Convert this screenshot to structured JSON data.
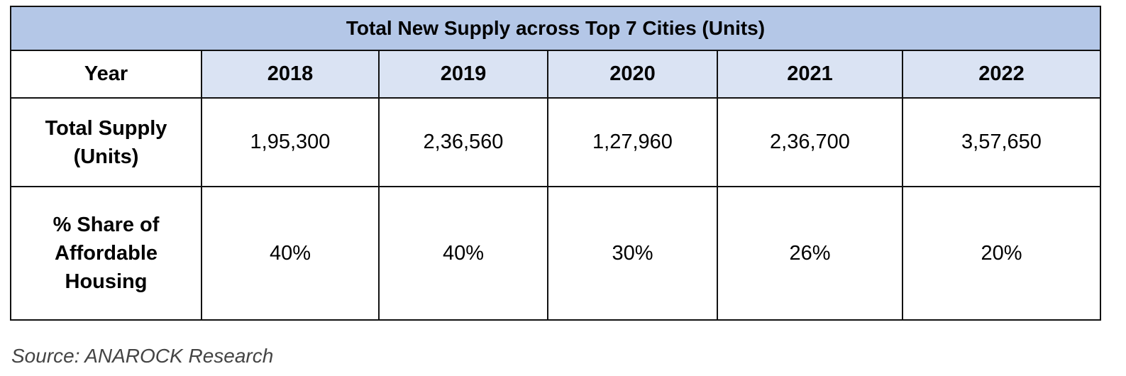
{
  "chart_data": {
    "type": "table",
    "title": "Total New Supply across Top 7 Cities (Units)",
    "row_header_label": "Year",
    "columns": [
      "2018",
      "2019",
      "2020",
      "2021",
      "2022"
    ],
    "rows": [
      {
        "label": "Total Supply (Units)",
        "values": [
          "1,95,300",
          "2,36,560",
          "1,27,960",
          "2,36,700",
          "3,57,650"
        ]
      },
      {
        "label": "% Share of Affordable Housing",
        "values": [
          "40%",
          "40%",
          "30%",
          "26%",
          "20%"
        ]
      }
    ],
    "colors": {
      "title_fill": "#b4c7e7",
      "header_fill": "#dae3f3"
    }
  },
  "source": "Source: ANAROCK Research"
}
